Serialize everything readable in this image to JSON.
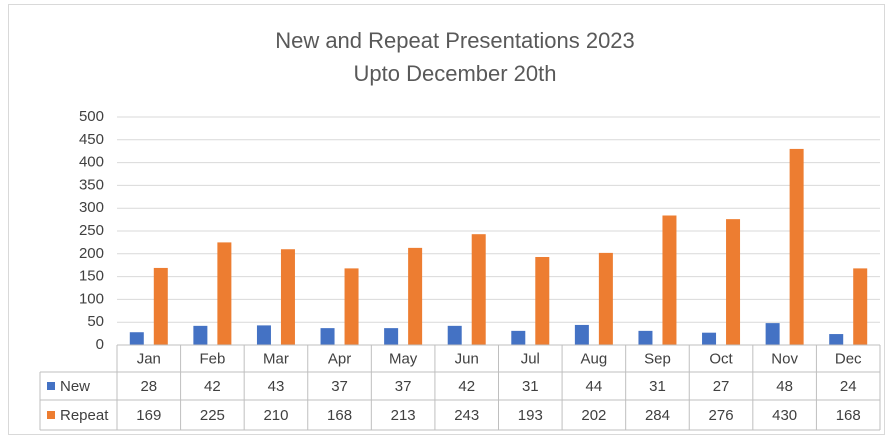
{
  "chart_data": {
    "type": "bar",
    "title": "New and Repeat Presentations 2023",
    "subtitle": "Upto December  20th",
    "categories": [
      "Jan",
      "Feb",
      "Mar",
      "Apr",
      "May",
      "Jun",
      "Jul",
      "Aug",
      "Sep",
      "Oct",
      "Nov",
      "Dec"
    ],
    "series": [
      {
        "name": "New",
        "color": "#4472c4",
        "values": [
          28,
          42,
          43,
          37,
          37,
          42,
          31,
          44,
          31,
          27,
          48,
          24
        ]
      },
      {
        "name": "Repeat",
        "color": "#ed7d31",
        "values": [
          169,
          225,
          210,
          168,
          213,
          243,
          193,
          202,
          284,
          276,
          430,
          168
        ]
      }
    ],
    "ylim": [
      0,
      500
    ],
    "yticks": [
      0,
      50,
      100,
      150,
      200,
      250,
      300,
      350,
      400,
      450,
      500
    ],
    "grid": true
  }
}
